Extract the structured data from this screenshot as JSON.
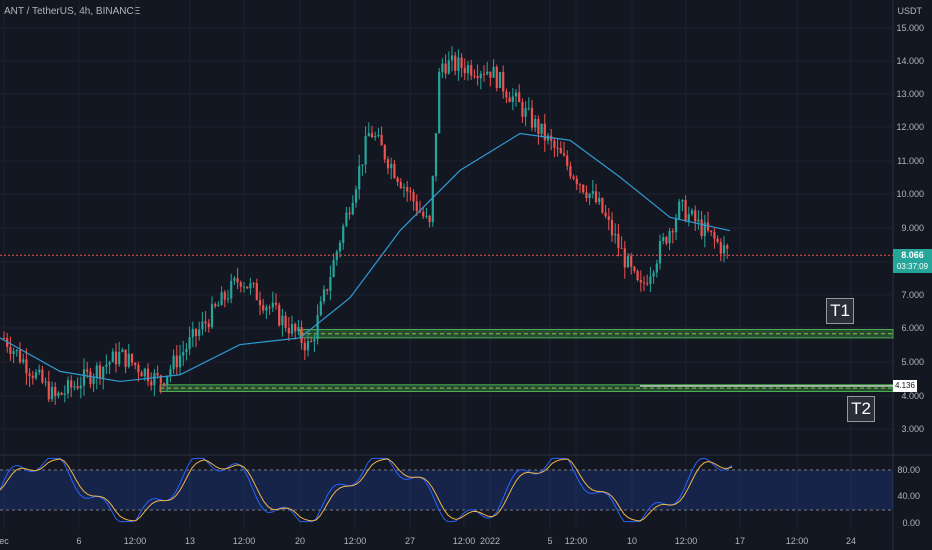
{
  "header": {
    "symbol": "ANT / TetherUS, 4h, BINANCE",
    "currency": "USDT"
  },
  "price_axis": [
    "15.000",
    "14.000",
    "13.000",
    "12.000",
    "11.000",
    "10.000",
    "9.000",
    "8.000",
    "7.000",
    "6.000",
    "5.000",
    "4.000",
    "3.000"
  ],
  "time_axis": [
    "ec",
    "6",
    "12:00",
    "13",
    "12:00",
    "20",
    "12:00",
    "27",
    "12:00",
    "2022",
    "5",
    "12:00",
    "10",
    "12:00",
    "17",
    "12:00",
    "24"
  ],
  "last_price": {
    "value": "8.066",
    "countdown": "03:37:09",
    "color": "#26a69a"
  },
  "t2_price_tag": "4.136",
  "targets": {
    "t1": "T1",
    "t2": "T2"
  },
  "oscillator": {
    "levels": [
      "80.00",
      "40.00",
      "0.00"
    ],
    "band_color": "#2962ff"
  },
  "colors": {
    "up": "#26a69a",
    "down": "#ef5350",
    "ma": "#2e9ad0",
    "k_line": "#2962ff",
    "d_line": "#f0b44c",
    "zone": "#4caf50"
  },
  "chart_data": {
    "type": "candlestick",
    "title": "ANT / TetherUS, 4h, BINANCE",
    "ylabel": "USDT",
    "ylim": [
      2.6,
      15.6
    ],
    "key_points": [
      {
        "x": "ec",
        "close": 5.6
      },
      {
        "x": "6",
        "close": 3.8
      },
      {
        "x": "12:00",
        "close": 5.1
      },
      {
        "x": "13",
        "close": 4.3
      },
      {
        "x": "12:00",
        "close": 7.4
      },
      {
        "x": "20",
        "close": 5.3
      },
      {
        "x": "12:00",
        "close": 11.8
      },
      {
        "x": "27",
        "close": 8.9
      },
      {
        "x": "12:00",
        "close": 13.8
      },
      {
        "x": "2022",
        "close": 13.6
      },
      {
        "x": "5",
        "close": 11.6
      },
      {
        "x": "12:00",
        "close": 9.5
      },
      {
        "x": "10",
        "close": 7.0
      },
      {
        "x": "12:00",
        "close": 9.5
      },
      {
        "x": "17",
        "close": 8.07
      }
    ],
    "moving_average": [
      5.6,
      4.6,
      4.3,
      4.5,
      5.4,
      5.6,
      6.8,
      8.8,
      10.6,
      11.7,
      11.5,
      10.4,
      9.2,
      8.8
    ],
    "zones": [
      {
        "label": "T1",
        "from": 5.6,
        "to": 5.85
      },
      {
        "label": "T2",
        "from": 4.0,
        "to": 4.2
      }
    ],
    "last_price": 8.066
  }
}
